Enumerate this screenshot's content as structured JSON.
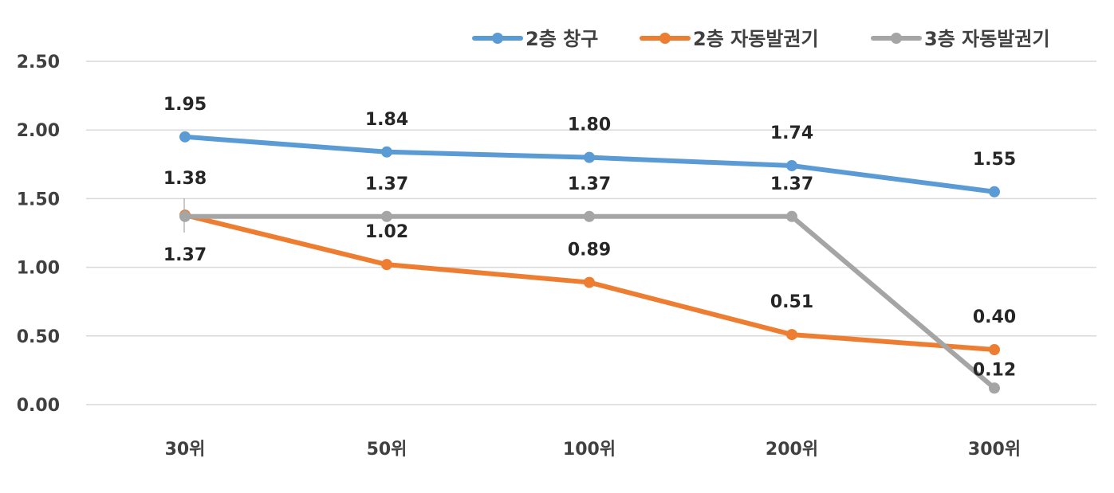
{
  "chart_data": {
    "type": "line",
    "categories": [
      "30위",
      "50위",
      "100위",
      "200위",
      "300위"
    ],
    "ylim": [
      0,
      2.5
    ],
    "yticks": [
      "0.00",
      "0.50",
      "1.00",
      "1.50",
      "2.00",
      "2.50"
    ],
    "grid": true,
    "legend_position": "top-right",
    "series": [
      {
        "name": "2층 창구",
        "color": "#5b9bd5",
        "values": [
          1.95,
          1.84,
          1.8,
          1.74,
          1.55
        ],
        "labels": [
          "1.95",
          "1.84",
          "1.80",
          "1.74",
          "1.55"
        ]
      },
      {
        "name": "2층 자동발권기",
        "color": "#ed7d31",
        "values": [
          1.38,
          1.02,
          0.89,
          0.51,
          0.4
        ],
        "labels": [
          "1.38",
          "1.02",
          "0.89",
          "0.51",
          "0.40"
        ]
      },
      {
        "name": "3층 자동발권기",
        "color": "#a5a5a5",
        "values": [
          1.37,
          1.37,
          1.37,
          1.37,
          0.12
        ],
        "labels": [
          "1.37",
          "1.37",
          "1.37",
          "1.37",
          "0.12"
        ]
      }
    ]
  }
}
